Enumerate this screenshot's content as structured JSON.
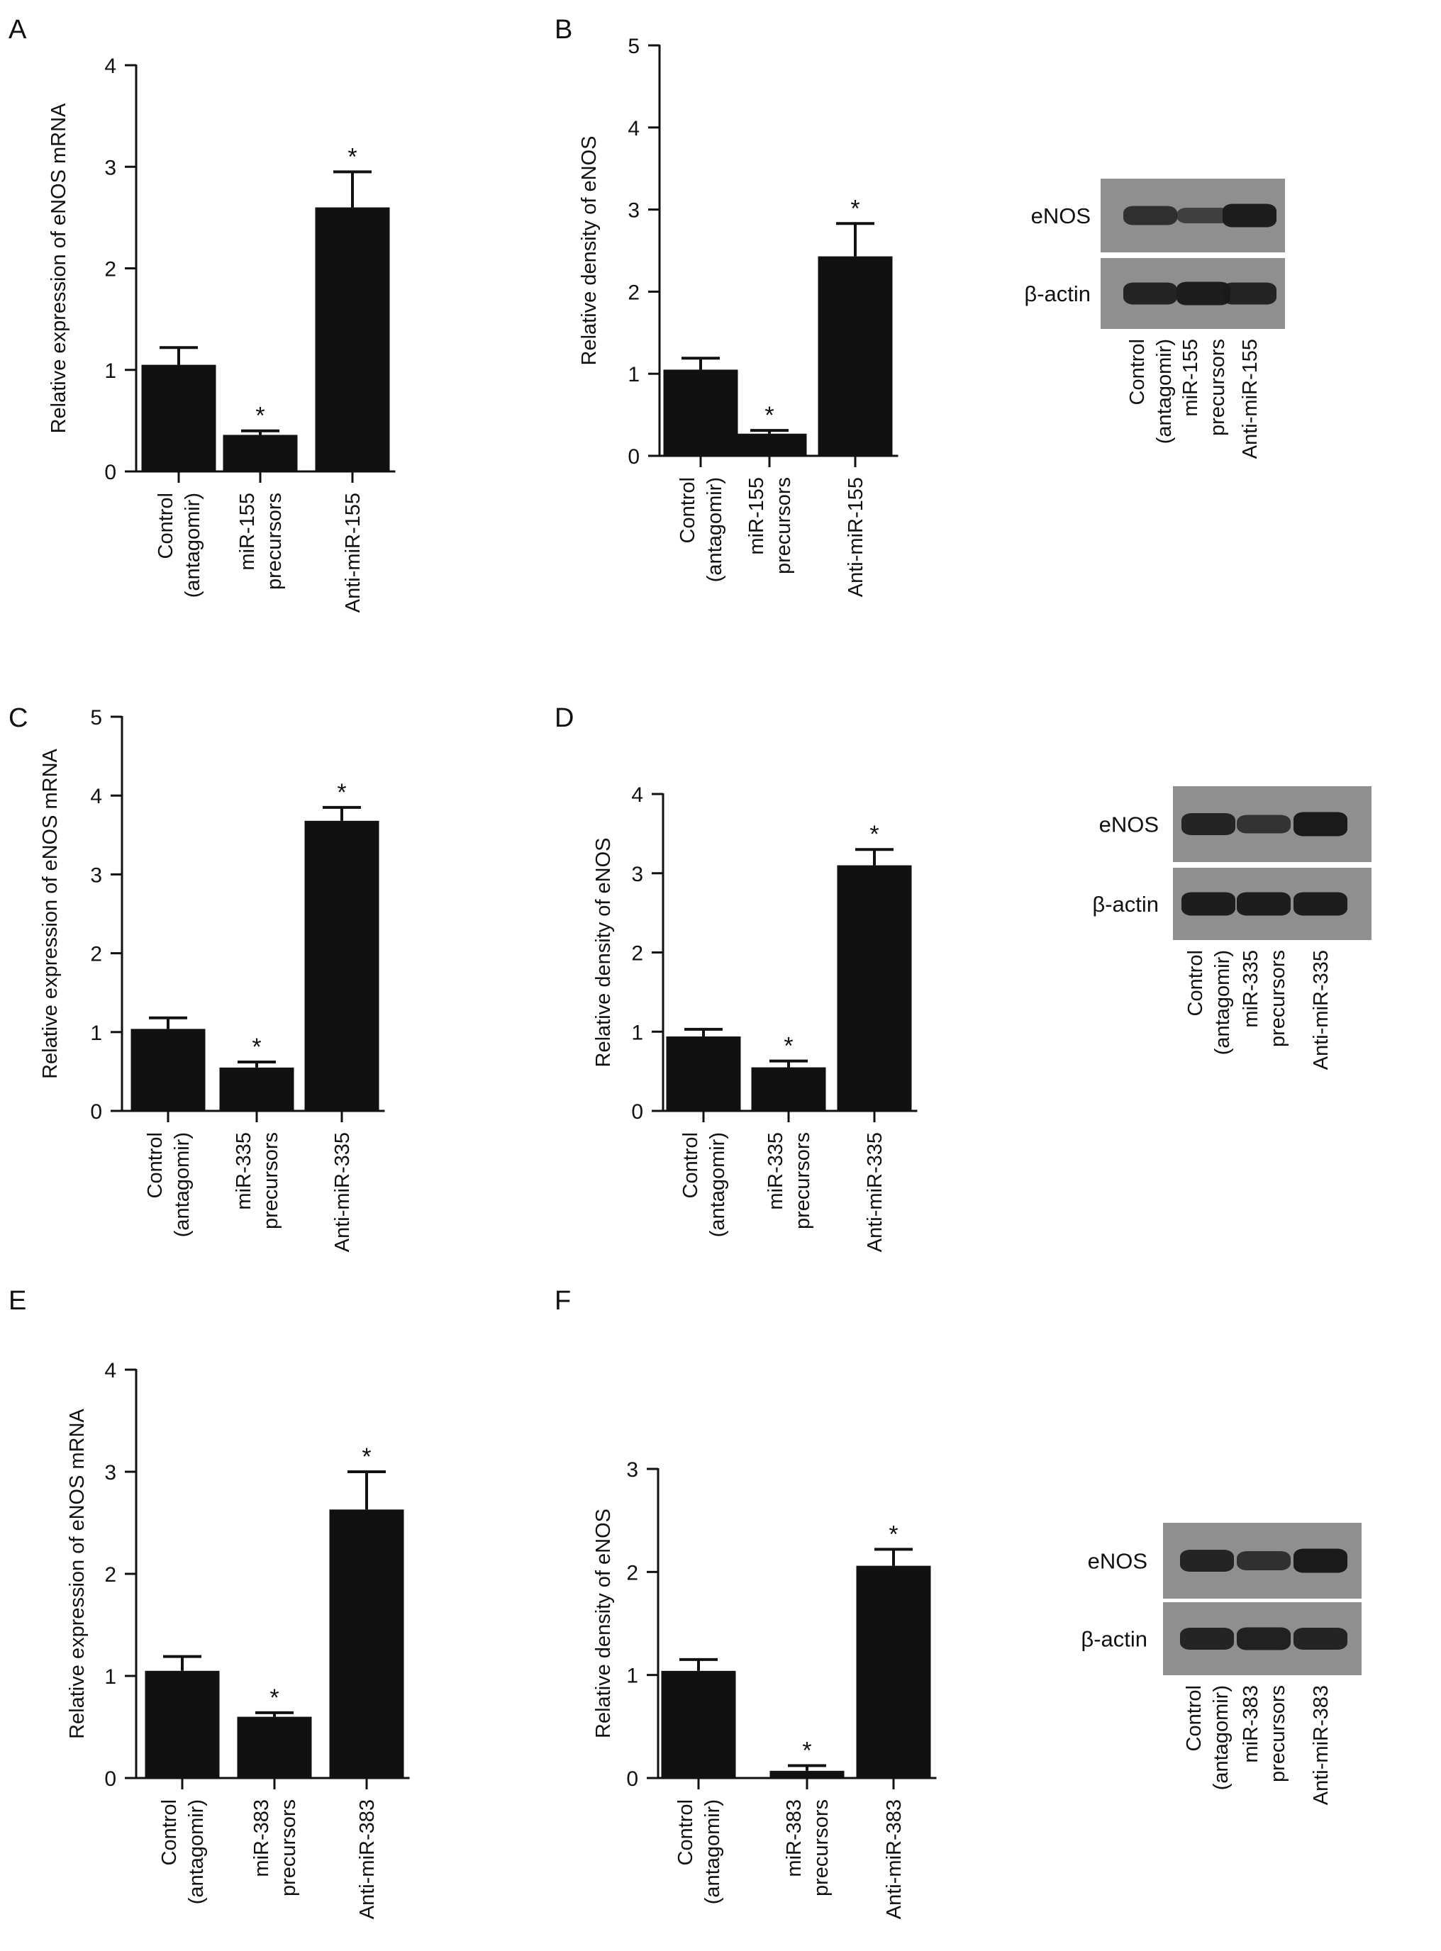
{
  "chart_data": [
    {
      "panel": "A",
      "type": "bar",
      "ylabel": "Relative expression of eNOS mRNA",
      "ylim": [
        0,
        4
      ],
      "yticks": [
        0,
        1,
        2,
        3,
        4
      ],
      "categories": [
        [
          "Control",
          "(antagomir)"
        ],
        [
          "miR-155",
          "precursors"
        ],
        [
          "Anti-miR-155"
        ]
      ],
      "values": [
        1.05,
        0.36,
        2.6
      ],
      "errors": [
        0.17,
        0.04,
        0.35
      ],
      "significance": [
        "",
        "*",
        "*"
      ]
    },
    {
      "panel": "B",
      "type": "bar",
      "ylabel": "Relative density of eNOS",
      "ylim": [
        0,
        5
      ],
      "yticks": [
        0,
        1,
        2,
        3,
        4,
        5
      ],
      "categories": [
        [
          "Control",
          "(antagomir)"
        ],
        [
          "miR-155",
          "precursors"
        ],
        [
          "Anti-miR-155"
        ]
      ],
      "values": [
        1.05,
        0.27,
        2.43
      ],
      "errors": [
        0.14,
        0.04,
        0.4
      ],
      "significance": [
        "",
        "*",
        "*"
      ]
    },
    {
      "panel": "C",
      "type": "bar",
      "ylabel": "Relative expression of eNOS mRNA",
      "ylim": [
        0,
        5
      ],
      "yticks": [
        0,
        1,
        2,
        3,
        4,
        5
      ],
      "categories": [
        [
          "Control",
          "(antagomir)"
        ],
        [
          "miR-335",
          "precursors"
        ],
        [
          "Anti-miR-335"
        ]
      ],
      "values": [
        1.04,
        0.55,
        3.68
      ],
      "errors": [
        0.14,
        0.07,
        0.17
      ],
      "significance": [
        "",
        "*",
        "*"
      ]
    },
    {
      "panel": "D",
      "type": "bar",
      "ylabel": "Relative density of eNOS",
      "ylim": [
        0,
        4
      ],
      "yticks": [
        0,
        1,
        2,
        3,
        4
      ],
      "categories": [
        [
          "Control",
          "(antagomir)"
        ],
        [
          "miR-335",
          "precursors"
        ],
        [
          "Anti-miR-335"
        ]
      ],
      "values": [
        0.94,
        0.55,
        3.1
      ],
      "errors": [
        0.09,
        0.08,
        0.2
      ],
      "significance": [
        "",
        "*",
        "*"
      ]
    },
    {
      "panel": "E",
      "type": "bar",
      "ylabel": "Relative expression of eNOS mRNA",
      "ylim": [
        0,
        4
      ],
      "yticks": [
        0,
        1,
        2,
        3,
        4
      ],
      "categories": [
        [
          "Control",
          "(antagomir)"
        ],
        [
          "miR-383",
          "precursors"
        ],
        [
          "Anti-miR-383"
        ]
      ],
      "values": [
        1.05,
        0.6,
        2.63
      ],
      "errors": [
        0.14,
        0.04,
        0.37
      ],
      "significance": [
        "",
        "*",
        "*"
      ]
    },
    {
      "panel": "F",
      "type": "bar",
      "ylabel": "Relative density of eNOS",
      "ylim": [
        0,
        3
      ],
      "yticks": [
        0,
        1,
        2,
        3
      ],
      "categories": [
        [
          "Control",
          "(antagomir)"
        ],
        [
          "miR-383",
          "precursors"
        ],
        [
          "Anti-miR-383"
        ]
      ],
      "values": [
        1.04,
        0.07,
        2.06
      ],
      "errors": [
        0.11,
        0.05,
        0.16
      ],
      "significance": [
        "",
        "*",
        "*"
      ]
    }
  ],
  "blots": [
    {
      "rows": [
        "eNOS",
        "β-actin"
      ],
      "lanes": [
        [
          "Control",
          "(antagomir)"
        ],
        [
          "miR-155",
          "precursors"
        ],
        [
          "Anti-miR-155"
        ]
      ],
      "band_intensity": {
        "eNOS": [
          0.65,
          0.4,
          0.95
        ],
        "β-actin": [
          0.85,
          0.95,
          0.85
        ]
      }
    },
    {
      "rows": [
        "eNOS",
        "β-actin"
      ],
      "lanes": [
        [
          "Control",
          "(antagomir)"
        ],
        [
          "miR-335",
          "precursors"
        ],
        [
          "Anti-miR-335"
        ]
      ],
      "band_intensity": {
        "eNOS": [
          0.85,
          0.6,
          1.0
        ],
        "β-actin": [
          0.95,
          0.95,
          0.95
        ]
      }
    },
    {
      "rows": [
        "eNOS",
        "β-actin"
      ],
      "lanes": [
        [
          "Control",
          "(antagomir)"
        ],
        [
          "miR-383",
          "precursors"
        ],
        [
          "Anti-miR-383"
        ]
      ],
      "band_intensity": {
        "eNOS": [
          0.85,
          0.65,
          1.0
        ],
        "β-actin": [
          0.85,
          0.9,
          0.85
        ]
      }
    }
  ]
}
